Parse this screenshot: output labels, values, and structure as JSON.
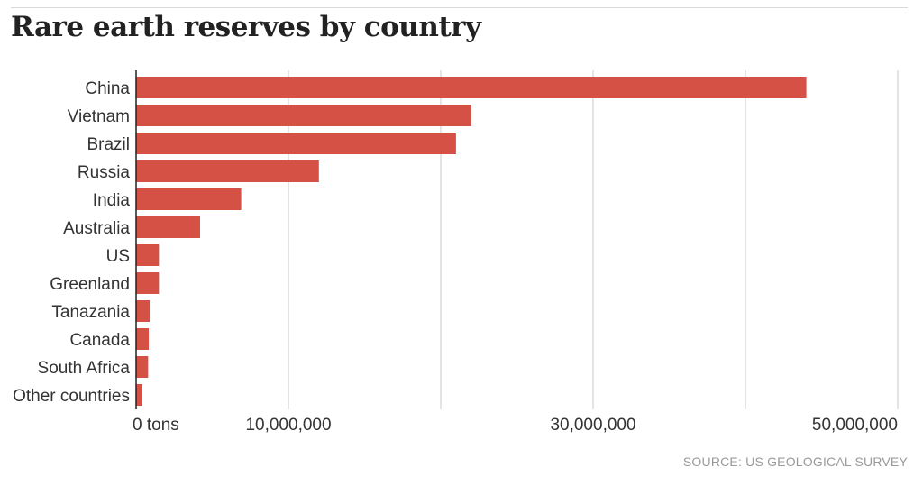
{
  "title": "Rare earth reserves by country",
  "source": "SOURCE: US GEOLOGICAL SURVEY",
  "colors": {
    "bar": "#d55145",
    "grid": "#dcdcdc",
    "axis": "#222222",
    "text": "#333333"
  },
  "chart_data": {
    "type": "bar",
    "orientation": "horizontal",
    "title": "Rare earth reserves by country",
    "xlabel": "",
    "ylabel": "",
    "xlim": [
      0,
      50000000
    ],
    "gridlines": [
      0,
      10000000,
      20000000,
      30000000,
      40000000,
      50000000
    ],
    "ticks": [
      {
        "value": 0,
        "label": "0 tons"
      },
      {
        "value": 10000000,
        "label": "10,000,000"
      },
      {
        "value": 30000000,
        "label": "30,000,000"
      },
      {
        "value": 50000000,
        "label": "50,000,000"
      }
    ],
    "categories": [
      "China",
      "Vietnam",
      "Brazil",
      "Russia",
      "India",
      "Australia",
      "US",
      "Greenland",
      "Tanazania",
      "Canada",
      "South Africa",
      "Other countries"
    ],
    "values": [
      44000000,
      22000000,
      21000000,
      12000000,
      6900000,
      4200000,
      1500000,
      1500000,
      890000,
      830000,
      790000,
      400000
    ]
  }
}
